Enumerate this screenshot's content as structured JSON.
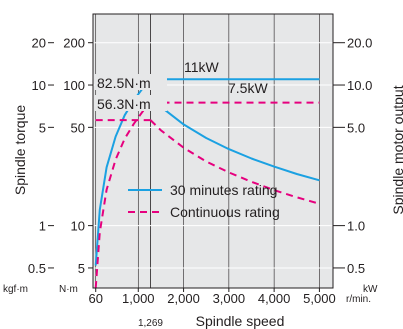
{
  "chart_data": {
    "type": "line",
    "title": "",
    "xlabel": "Spindle speed",
    "x_unit": "r/min.",
    "x_ticks": [
      60,
      1000,
      2000,
      3000,
      4000,
      5000
    ],
    "x_tick_labels": [
      "60",
      "1,000",
      "2,000",
      "3,000",
      "4,000",
      "5,000"
    ],
    "x_special_tick": 1269,
    "x_special_tick_label": "1,269",
    "xlim": [
      0,
      5300
    ],
    "ylabel_left": "Spindle torque",
    "ylabel_right": "Spindle motor output",
    "y_scale": "log",
    "y_ticks_torque_nm": [
      5,
      10,
      50,
      100,
      200
    ],
    "y_ticks_torque_nm_labels": [
      "5",
      "10",
      "50",
      "100",
      "200"
    ],
    "y_ticks_torque_kgfm": [
      0.5,
      1,
      5,
      10,
      20
    ],
    "y_ticks_torque_kgfm_labels": [
      "0.5",
      "1",
      "5",
      "10",
      "20"
    ],
    "y_ticks_output_kw": [
      0.5,
      1.0,
      5.0,
      10.0,
      20.0
    ],
    "y_ticks_output_kw_labels": [
      "0.5",
      "1.0",
      "5.0",
      "10.0",
      "20.0"
    ],
    "unit_kgfm": "kgf·m",
    "unit_nm": "N·m",
    "unit_kw": "kW",
    "ylim_torque_nm": [
      3.6,
      320
    ],
    "grid": true,
    "legend_position": "bottom-right",
    "series": [
      {
        "name": "30 minutes rating",
        "style": "solid",
        "color": "#1ba1e2",
        "torque_nm": {
          "x": [
            1269,
            1500,
            2000,
            2500,
            3000,
            3500,
            4000,
            4500,
            5000
          ],
          "y": [
            82.5,
            70,
            52.5,
            42,
            35,
            30,
            26.3,
            23.3,
            21
          ]
        },
        "output_kw": {
          "x": [
            1269,
            5000
          ],
          "y": [
            11,
            11
          ]
        },
        "startup_kw": {
          "x": [
            60,
            150,
            300,
            500,
            700,
            900,
            1100,
            1269
          ],
          "y": [
            0.52,
            1.3,
            2.6,
            4.3,
            6.1,
            7.8,
            9.5,
            11
          ]
        }
      },
      {
        "name": "Continuous rating",
        "style": "dashed",
        "color": "#e6007e",
        "torque_nm": {
          "x": [
            1269,
            1500,
            2000,
            2500,
            3000,
            3500,
            4000,
            4500,
            5000
          ],
          "y": [
            56.3,
            47.6,
            35.8,
            28.6,
            23.9,
            20.5,
            17.9,
            15.9,
            14.3
          ]
        },
        "output_kw": {
          "x": [
            1269,
            5000
          ],
          "y": [
            7.5,
            7.5
          ]
        },
        "startup_kw": {
          "x": [
            60,
            150,
            300,
            500,
            700,
            900,
            1100,
            1269
          ],
          "y": [
            0.36,
            0.9,
            1.8,
            2.95,
            4.15,
            5.3,
            6.5,
            7.5
          ]
        }
      }
    ],
    "annotations": [
      "11kW",
      "7.5kW",
      "82.5N·m",
      "56.3N·m"
    ]
  }
}
